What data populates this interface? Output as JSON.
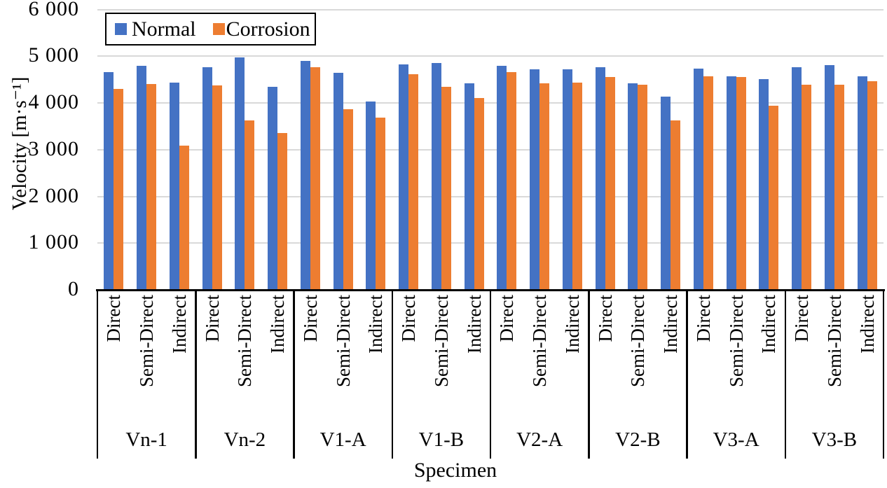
{
  "chart_data": {
    "type": "bar",
    "title": "",
    "xlabel": "Specimen",
    "ylabel": "Velocity [m·s⁻¹]",
    "ylim": [
      0,
      6000
    ],
    "ytick_interval": 1000,
    "ytick_labels": [
      "0",
      "1 000",
      "2 000",
      "3 000",
      "4 000",
      "5 000",
      "6 000"
    ],
    "grid": true,
    "legend_position": "top-left-boxed",
    "specimens": [
      "Vn-1",
      "Vn-2",
      "V1-A",
      "V1-B",
      "V2-A",
      "V2-B",
      "V3-A",
      "V3-B"
    ],
    "directions": [
      "Direct",
      "Semi-Direct",
      "Indirect"
    ],
    "series": [
      {
        "name": "Normal",
        "color": "#4472C4",
        "values": [
          [
            4660,
            4790,
            4430
          ],
          [
            4760,
            4970,
            4350
          ],
          [
            4900,
            4650,
            4030
          ],
          [
            4820,
            4850,
            4420
          ],
          [
            4790,
            4720,
            4720
          ],
          [
            4770,
            4420,
            4130
          ],
          [
            4730,
            4570,
            4510
          ],
          [
            4770,
            4810,
            4570
          ]
        ]
      },
      {
        "name": "Corrosion",
        "color": "#ED7D31",
        "values": [
          [
            4300,
            4400,
            3090
          ],
          [
            4370,
            3620,
            3360
          ],
          [
            4770,
            3870,
            3690
          ],
          [
            4610,
            4340,
            4110
          ],
          [
            4660,
            4420,
            4430
          ],
          [
            4550,
            4390,
            3620
          ],
          [
            4570,
            4550,
            3940
          ],
          [
            4390,
            4390,
            4460
          ]
        ]
      }
    ],
    "colors": {
      "gridline": "#d9d9d9",
      "axis": "#000000",
      "text": "#000000",
      "background": "#ffffff"
    }
  }
}
